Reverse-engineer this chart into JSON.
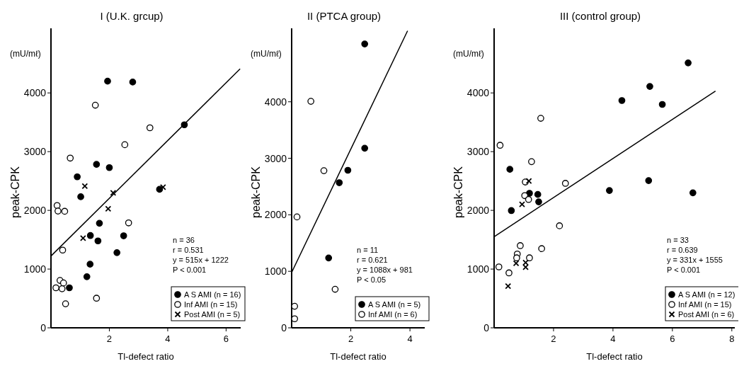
{
  "chart_data": [
    {
      "type": "scatter",
      "title": "I (U.K. grcup)",
      "xlabel": "Tl-defect ratio",
      "ylabel": "peak-CPK",
      "xlim": [
        0,
        6.5
      ],
      "ylim": [
        0,
        5100
      ],
      "xticks": [
        2,
        4,
        6
      ],
      "yticks": [
        0,
        1000,
        2000,
        3000,
        4000
      ],
      "legend": "bottom right",
      "annotations": [
        "(mU/mℓ)",
        "n = 36",
        "r = 0.531",
        "y = 515x + 1222",
        "P < 0.001"
      ],
      "series": [
        {
          "name": "A S AMI (n = 16)",
          "color": "#000000",
          "marker": "circle",
          "x": [
            1.94,
            2.8,
            4.57,
            1.56,
            2.0,
            0.9,
            1.02,
            3.72,
            1.66,
            1.35,
            1.61,
            2.49,
            2.26,
            1.34,
            1.23,
            0.63
          ],
          "values": [
            4200,
            4185,
            3457,
            2783,
            2728,
            2571,
            2232,
            2358,
            1780,
            1571,
            1480,
            1567,
            1280,
            1083,
            870,
            681
          ]
        },
        {
          "name": "Inf AMI (n = 15)",
          "color": "#ffffff",
          "marker": "circle",
          "x": [
            1.52,
            3.39,
            2.53,
            0.66,
            0.21,
            0.24,
            0.47,
            2.66,
            0.4,
            0.31,
            0.43,
            0.17,
            0.38,
            0.5,
            1.56
          ],
          "values": [
            3791,
            3406,
            3118,
            2890,
            2083,
            1988,
            1984,
            1787,
            1323,
            807,
            764,
            681,
            665,
            409,
            504
          ]
        },
        {
          "name": "Post AMI (n = 5)",
          "color": "#000000",
          "marker": "cross",
          "x": [
            1.16,
            2.13,
            1.96,
            1.1,
            3.84
          ],
          "values": [
            2413,
            2299,
            2028,
            1528,
            2394
          ]
        },
        {
          "type": "line",
          "color": "#000000",
          "marker": "none",
          "x": [
            0,
            6.48
          ],
          "values": [
            1222,
            4409
          ]
        }
      ]
    },
    {
      "type": "scatter",
      "title": "II (PTCA group)",
      "xlabel": "Tl-defect ratio",
      "ylabel": "peak-CPK",
      "xlim": [
        0,
        4.5
      ],
      "ylim": [
        0,
        5300
      ],
      "xticks": [
        2,
        4
      ],
      "yticks": [
        0,
        1000,
        2000,
        3000,
        4000
      ],
      "legend": "bottom right",
      "annotations": [
        "(mU/mℓ)",
        "n = 11",
        "r = 0.621",
        "y = 1088x + 981",
        "P < 0.05"
      ],
      "series": [
        {
          "name": "A S AMI (n = 5)",
          "color": "#000000",
          "marker": "circle",
          "x": [
            2.47,
            2.47,
            1.9,
            1.61,
            1.25
          ],
          "values": [
            5023,
            3178,
            2788,
            2568,
            1236
          ]
        },
        {
          "name": "Inf AMI (n = 6)",
          "color": "#ffffff",
          "marker": "circle",
          "x": [
            0.65,
            1.09,
            0.18,
            1.47,
            0.1,
            0.1
          ],
          "values": [
            4008,
            2780,
            1962,
            682,
            381,
            160
          ]
        },
        {
          "type": "line",
          "color": "#000000",
          "marker": "none",
          "x": [
            0,
            3.92
          ],
          "values": [
            981,
            5256
          ]
        }
      ]
    },
    {
      "type": "scatter",
      "title": "III (control group)",
      "xlabel": "Tl-defect ratio",
      "ylabel": "peak-CPK",
      "xlim": [
        0,
        8.1
      ],
      "ylim": [
        0,
        5100
      ],
      "xticks": [
        2,
        4,
        6,
        8
      ],
      "yticks": [
        0,
        1000,
        2000,
        3000,
        4000
      ],
      "legend": "bottom right",
      "annotations": [
        "(mU/mℓ)",
        "n = 33",
        "r = 0.639",
        "y = 331x + 1555",
        "P < 0.001"
      ],
      "series": [
        {
          "name": "A S AMI (n = 12)",
          "color": "#000000",
          "marker": "circle",
          "x": [
            6.53,
            5.24,
            4.3,
            5.66,
            5.2,
            3.88,
            6.69,
            0.53,
            0.58,
            1.19,
            1.47,
            1.5
          ],
          "values": [
            4511,
            4110,
            3870,
            3804,
            2507,
            2338,
            2299,
            2699,
            1996,
            2291,
            2271,
            2145
          ]
        },
        {
          "name": "Inf AMI (n = 15)",
          "color": "#ffffff",
          "marker": "circle",
          "x": [
            0.2,
            1.57,
            1.26,
            2.4,
            1.05,
            1.03,
            1.16,
            2.2,
            0.88,
            1.6,
            0.78,
            0.76,
            1.19,
            0.16,
            0.5
          ],
          "values": [
            3108,
            3568,
            2829,
            2460,
            2483,
            2251,
            2185,
            1737,
            1399,
            1348,
            1257,
            1191,
            1191,
            1037,
            935
          ]
        },
        {
          "name": "Post AMI (n = 6)",
          "color": "#000000",
          "marker": "cross",
          "x": [
            1.17,
            0.94,
            0.74,
            1.06,
            1.06,
            0.47
          ],
          "values": [
            2499,
            2102,
            1100,
            1112,
            1033,
            711
          ]
        },
        {
          "type": "line",
          "color": "#000000",
          "marker": "none",
          "x": [
            0,
            7.45
          ],
          "values": [
            1552,
            4031
          ]
        }
      ]
    }
  ]
}
